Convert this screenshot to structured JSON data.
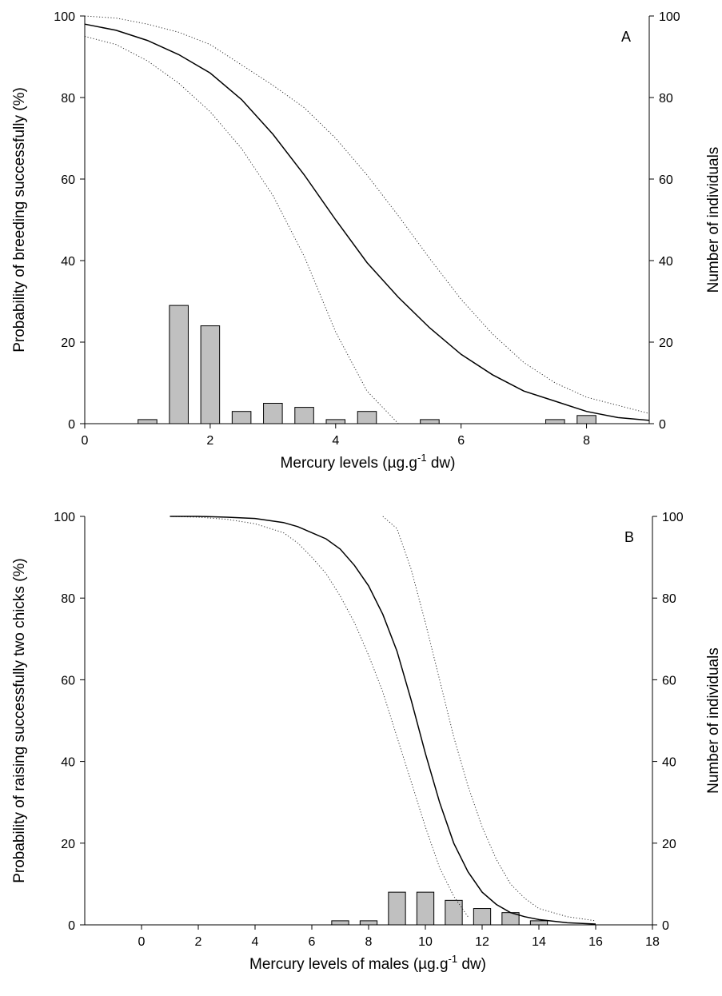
{
  "chart_data": [
    {
      "type": "bar",
      "panel_label": "A",
      "xlabel": "Mercury levels (µg.g",
      "xlabel_sup": "-1",
      "xlabel_tail": " dw)",
      "ylabel_left": "Probability of breeding successfully (%)",
      "ylabel_right": "Number of individuals",
      "xlim": [
        0,
        9
      ],
      "ylim": [
        0,
        100
      ],
      "xticks": [
        0,
        2,
        4,
        6,
        8
      ],
      "yticks": [
        0,
        20,
        40,
        60,
        80,
        100
      ],
      "bar_width": 0.3,
      "bars": {
        "x": [
          1.0,
          1.5,
          2.0,
          2.5,
          3.0,
          3.5,
          4.0,
          4.5,
          5.5,
          7.5,
          8.0
        ],
        "values": [
          1,
          29,
          24,
          3,
          5,
          4,
          1,
          3,
          1,
          1,
          2
        ]
      },
      "fit": {
        "x": [
          0,
          0.5,
          1,
          1.5,
          2,
          2.5,
          3,
          3.5,
          4,
          4.5,
          5,
          5.5,
          6,
          6.5,
          7,
          7.5,
          8,
          8.5,
          9
        ],
        "values": [
          98,
          96.5,
          94,
          90.5,
          86,
          79.5,
          71,
          61,
          50,
          39.5,
          31,
          23.5,
          17,
          12,
          8,
          5.5,
          3,
          1.5,
          0.8
        ]
      },
      "ci_upper": {
        "x": [
          0,
          0.5,
          1,
          1.5,
          2,
          2.5,
          3,
          3.5,
          4,
          4.5,
          5,
          5.5,
          6,
          6.5,
          7,
          7.5,
          8,
          8.5,
          9
        ],
        "values": [
          100,
          99.5,
          98,
          96,
          93,
          88,
          83,
          77.5,
          70,
          61,
          51,
          40.5,
          30.5,
          22,
          15,
          10,
          6.5,
          4.5,
          2.5
        ]
      },
      "ci_lower": {
        "x": [
          0,
          0.5,
          1,
          1.5,
          2,
          2.5,
          3,
          3.5,
          4,
          4.5,
          5
        ],
        "values": [
          95,
          93,
          89,
          83.5,
          76.5,
          67.5,
          56,
          41,
          22.5,
          8,
          0
        ]
      }
    },
    {
      "type": "bar",
      "panel_label": "B",
      "xlabel": "Mercury levels of males (µg.g",
      "xlabel_sup": "-1",
      "xlabel_tail": " dw)",
      "ylabel_left": "Probability of raising successfully two chicks (%)",
      "ylabel_right": "Number of individuals",
      "xlim": [
        -2,
        18
      ],
      "ylim": [
        0,
        100
      ],
      "xticks": [
        0,
        2,
        4,
        6,
        8,
        10,
        12,
        14,
        16,
        18
      ],
      "yticks": [
        0,
        20,
        40,
        60,
        80,
        100
      ],
      "bar_width": 0.6,
      "bars": {
        "x": [
          7,
          8,
          9,
          10,
          11,
          12,
          13,
          14
        ],
        "values": [
          1,
          1,
          8,
          8,
          6,
          4,
          3,
          1
        ]
      },
      "fit": {
        "x": [
          1,
          2,
          3,
          4,
          5,
          5.5,
          6,
          6.5,
          7,
          7.5,
          8,
          8.5,
          9,
          9.5,
          10,
          10.5,
          11,
          11.5,
          12,
          12.5,
          13,
          13.5,
          14,
          15,
          16
        ],
        "values": [
          100,
          100,
          99.8,
          99.5,
          98.5,
          97.5,
          96,
          94.5,
          92,
          88,
          83,
          76,
          67,
          55,
          42,
          30,
          20,
          13,
          8,
          5,
          3,
          2,
          1.3,
          0.5,
          0.2
        ]
      },
      "ci_upper": {
        "x": [
          8.5,
          9,
          9.5,
          10,
          10.5,
          11,
          11.5,
          12,
          12.5,
          13,
          13.5,
          14,
          15,
          16
        ],
        "values": [
          100,
          97,
          87,
          74,
          60,
          46,
          34,
          24,
          16,
          10,
          6.5,
          4,
          2,
          1
        ]
      },
      "ci_lower": {
        "x": [
          1,
          2,
          3,
          4,
          5,
          5.5,
          6,
          6.5,
          7,
          7.5,
          8,
          8.5,
          9,
          9.5,
          10,
          10.5,
          11,
          11.5
        ],
        "values": [
          100,
          99.8,
          99.3,
          98.2,
          96,
          93.5,
          90,
          86,
          80.5,
          74,
          66,
          57,
          46,
          35,
          24,
          14,
          7,
          2
        ]
      }
    }
  ]
}
